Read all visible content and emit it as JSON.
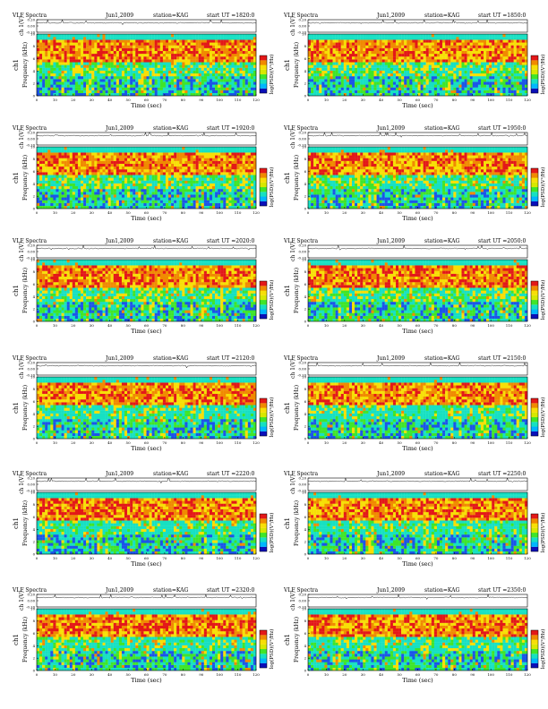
{
  "figure": {
    "panels": [
      {
        "header": {
          "title": "VLF Spectra",
          "date": "Jun1,2009",
          "station": "station=KAG",
          "start": "start  UT =1820:0"
        }
      },
      {
        "header": {
          "title": "VLF Spectra",
          "date": "Jun1,2009",
          "station": "station=KAG",
          "start": "start  UT =1850:0"
        }
      },
      {
        "header": {
          "title": "VLF Spectra",
          "date": "Jun1,2009",
          "station": "station=KAG",
          "start": "start  UT =1920:0"
        }
      },
      {
        "header": {
          "title": "VLF Spectra",
          "date": "Jun1,2009",
          "station": "station=KAG",
          "start": "start  UT =1950:0"
        }
      },
      {
        "header": {
          "title": "VLF Spectra",
          "date": "Jun1,2009",
          "station": "station=KAG",
          "start": "start  UT =2020:0"
        }
      },
      {
        "header": {
          "title": "VLF Spectra",
          "date": "Jun1,2009",
          "station": "station=KAG",
          "start": "start  UT =2050:0"
        }
      },
      {
        "header": {
          "title": "VLF Spectra",
          "date": "Jun1,2009",
          "station": "station=KAG",
          "start": "start  UT =2120:0"
        }
      },
      {
        "header": {
          "title": "VLF Spectra",
          "date": "Jun1,2009",
          "station": "station=KAG",
          "start": "start  UT =2150:0"
        }
      },
      {
        "header": {
          "title": "VLF Spectra",
          "date": "Jun1,2009",
          "station": "station=KAG",
          "start": "start  UT =2220:0"
        }
      },
      {
        "header": {
          "title": "VLF Spectra",
          "date": "Jun1,2009",
          "station": "station=KAG",
          "start": "start  UT =2250:0"
        }
      },
      {
        "header": {
          "title": "VLF Spectra",
          "date": "Jun1,2009",
          "station": "station=KAG",
          "start": "start  UT =2320:0"
        }
      },
      {
        "header": {
          "title": "VLF Spectra",
          "date": "Jun1,2009",
          "station": "station=KAG",
          "start": "start  UT =2350:0"
        }
      }
    ]
  },
  "chart_data": {
    "type": "heatmap",
    "panel_count": 12,
    "waveform": {
      "ylabel": "ch 1(V)",
      "yticks": [
        "0.20",
        "0.00",
        "-0.20"
      ],
      "ylim": [
        -0.2,
        0.2
      ]
    },
    "spectrogram": {
      "ylabel_left": "ch1",
      "ylabel": "Frequency  (kHz)",
      "yticks": [
        "0",
        "2",
        "4",
        "6",
        "8",
        "10"
      ],
      "ylim": [
        0,
        10
      ],
      "xlabel": "Time  (sec)",
      "xticks": [
        "0",
        "10",
        "20",
        "30",
        "40",
        "50",
        "60",
        "70",
        "80",
        "90",
        "100",
        "110",
        "120"
      ],
      "xlim": [
        0,
        120
      ]
    },
    "colorbar": {
      "label": "log(PSD)(V²/Hz)",
      "tick_labels": [
        "",
        "-"
      ],
      "colors": [
        "#0b0fb8",
        "#00b7ff",
        "#17e0c2",
        "#3fe52a",
        "#d8e800",
        "#f7df06",
        "#f08a00",
        "#e31818"
      ]
    },
    "colors": {
      "blue": "#1b55e8",
      "cyan": "#17e0c2",
      "green": "#3fe52a",
      "yellow": "#f7df06",
      "orange": "#f08a00",
      "red": "#e31818"
    }
  }
}
